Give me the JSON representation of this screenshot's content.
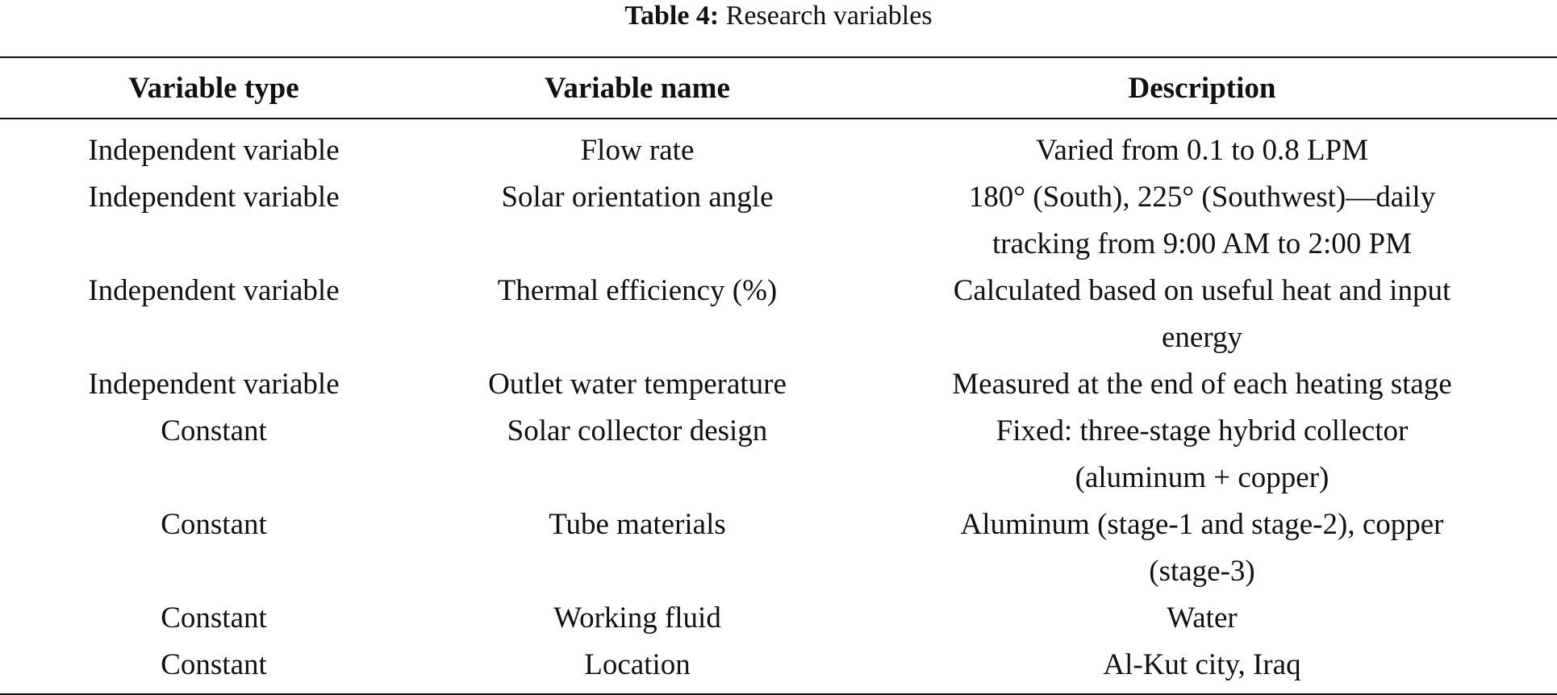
{
  "caption": {
    "label": "Table 4:",
    "text": "Research variables"
  },
  "table": {
    "header": [
      "Variable type",
      "Variable name",
      "Description"
    ],
    "rows": [
      [
        "Independent variable",
        "Flow rate",
        [
          "Varied from 0.1 to 0.8 LPM"
        ]
      ],
      [
        "Independent variable",
        "Solar orientation angle",
        [
          "180° (South), 225° (Southwest)—daily",
          "tracking from 9:00 AM to 2:00 PM"
        ]
      ],
      [
        "Independent variable",
        "Thermal efficiency (%)",
        [
          "Calculated based on useful heat and input",
          "energy"
        ]
      ],
      [
        "Independent variable",
        "Outlet water temperature",
        [
          "Measured at the end of each heating stage"
        ]
      ],
      [
        "Constant",
        "Solar collector design",
        [
          "Fixed: three-stage hybrid collector",
          "(aluminum + copper)"
        ]
      ],
      [
        "Constant",
        "Tube materials",
        [
          "Aluminum (stage-1 and stage-2), copper",
          "(stage-3)"
        ]
      ],
      [
        "Constant",
        "Working fluid",
        [
          "Water"
        ]
      ],
      [
        "Constant",
        "Location",
        [
          "Al-Kut city, Iraq"
        ]
      ]
    ]
  }
}
